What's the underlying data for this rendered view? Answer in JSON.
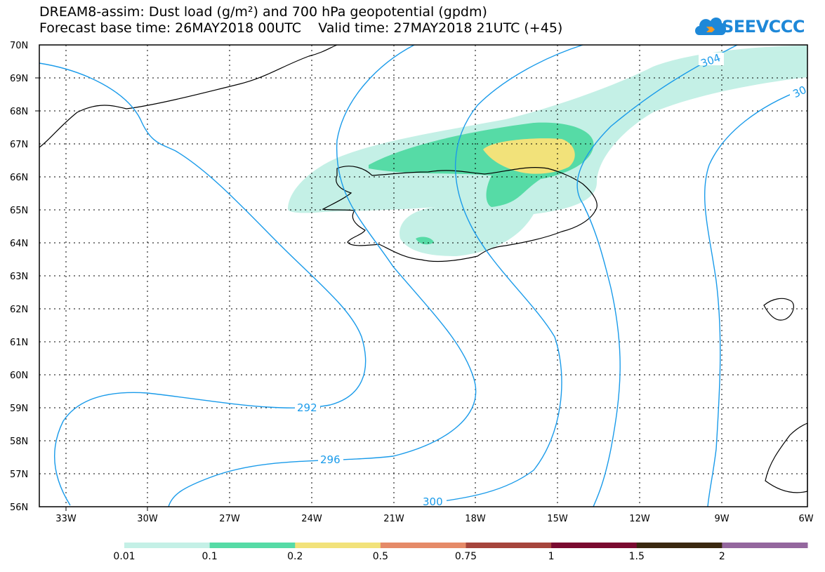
{
  "header": {
    "title_line1": "DREAM8-assim: Dust load (g/m²) and 700 hPa geopotential (gpdm)",
    "title_line2": "Forecast base time: 26MAY2018 00UTC    Valid time: 27MAY2018 21UTC (+45)"
  },
  "logo": {
    "text": "SEEVCCC",
    "icon": "cloud-icon",
    "color": "#1e88d8"
  },
  "map": {
    "lat_labels": [
      "70N",
      "69N",
      "68N",
      "67N",
      "66N",
      "65N",
      "64N",
      "63N",
      "62N",
      "61N",
      "60N",
      "59N",
      "58N",
      "57N",
      "56N"
    ],
    "lon_labels": [
      "33W",
      "30W",
      "27W",
      "24W",
      "21W",
      "18W",
      "15W",
      "12W",
      "9W",
      "6W"
    ],
    "contour_labels": [
      "292",
      "296",
      "300",
      "304",
      "30"
    ],
    "contour_color": "#1a9bea",
    "coastline_color": "#000000"
  },
  "colorbar": {
    "labels": [
      "0.01",
      "0.1",
      "0.2",
      "0.5",
      "0.75",
      "1",
      "1.5",
      "2"
    ],
    "colors": [
      "#c4f0e6",
      "#56dba6",
      "#f2e27a",
      "#e58a68",
      "#a6453c",
      "#7a0a30",
      "#3a2810",
      "#94679e"
    ]
  }
}
